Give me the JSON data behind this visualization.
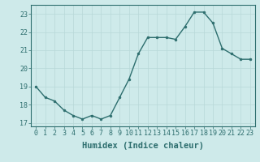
{
  "x": [
    0,
    1,
    2,
    3,
    4,
    5,
    6,
    7,
    8,
    9,
    10,
    11,
    12,
    13,
    14,
    15,
    16,
    17,
    18,
    19,
    20,
    21,
    22,
    23
  ],
  "y": [
    19.0,
    18.4,
    18.2,
    17.7,
    17.4,
    17.2,
    17.4,
    17.2,
    17.4,
    18.4,
    19.4,
    20.8,
    21.7,
    21.7,
    21.7,
    21.6,
    22.3,
    23.1,
    23.1,
    22.5,
    21.1,
    20.8,
    20.5,
    20.5
  ],
  "line_color": "#2d6e6e",
  "marker": "o",
  "markersize": 2.0,
  "linewidth": 1.0,
  "xlabel": "Humidex (Indice chaleur)",
  "ylim": [
    16.8,
    23.5
  ],
  "xlim": [
    -0.5,
    23.5
  ],
  "yticks": [
    17,
    18,
    19,
    20,
    21,
    22,
    23
  ],
  "xticks": [
    0,
    1,
    2,
    3,
    4,
    5,
    6,
    7,
    8,
    9,
    10,
    11,
    12,
    13,
    14,
    15,
    16,
    17,
    18,
    19,
    20,
    21,
    22,
    23
  ],
  "bg_color": "#ceeaea",
  "grid_color_major": "#b8d8d8",
  "grid_color_minor": "#cde8e8",
  "tick_color": "#2d6e6e",
  "label_color": "#2d6e6e",
  "xlabel_fontsize": 7.5,
  "tick_fontsize": 6.0,
  "spine_color": "#2d6e6e"
}
